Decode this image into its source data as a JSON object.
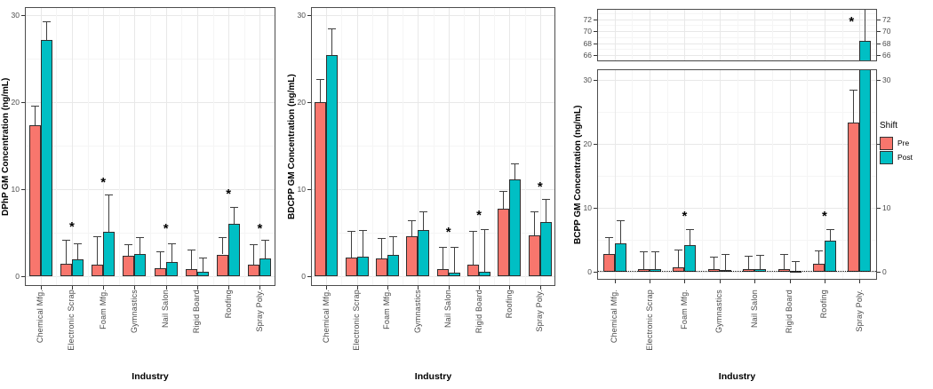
{
  "chart_data": {
    "type": "bar",
    "title": "",
    "xlabel": "Industry",
    "categories": [
      "Chemical Mfg.",
      "Electronic Scrap",
      "Foam Mfg.",
      "Gymnastics",
      "Nail Salon",
      "Rigid Board",
      "Roofing",
      "Spray Poly."
    ],
    "legend": {
      "title": "Shift",
      "position": "right",
      "items": [
        {
          "name": "Pre",
          "color": "#F8766D"
        },
        {
          "name": "Post",
          "color": "#00BFC4"
        }
      ]
    },
    "sig_symbol": "*",
    "grid": true,
    "panels": [
      {
        "ylabel": "DPhP GM Concentration (ng/mL)",
        "ylim": [
          0,
          31
        ],
        "yticks": [
          0,
          10,
          20,
          30
        ],
        "series": [
          {
            "name": "Pre",
            "values": [
              17.3,
              1.4,
              1.3,
              2.3,
              0.9,
              0.8,
              2.5,
              1.3
            ],
            "err_hi": [
              19.6,
              4.2,
              4.6,
              3.7,
              2.9,
              3.1,
              4.5,
              3.7
            ]
          },
          {
            "name": "Post",
            "values": [
              27.1,
              1.9,
              5.1,
              2.6,
              1.6,
              0.5,
              6.0,
              2.0
            ],
            "err_hi": [
              29.3,
              3.8,
              9.4,
              4.5,
              3.8,
              2.1,
              8.0,
              4.2
            ]
          }
        ],
        "sig_markers": [
          {
            "category": "Electronic Scrap",
            "index": 1,
            "y": 5.6
          },
          {
            "category": "Foam Mfg.",
            "index": 2,
            "y": 10.7
          },
          {
            "category": "Nail Salon",
            "index": 4,
            "y": 5.4
          },
          {
            "category": "Roofing",
            "index": 6,
            "y": 9.4
          },
          {
            "category": "Spray Poly.",
            "index": 7,
            "y": 5.4
          }
        ]
      },
      {
        "ylabel": "BDCPP GM Concentration (ng/mL)",
        "ylim": [
          0,
          31
        ],
        "yticks": [
          0,
          10,
          20,
          30
        ],
        "series": [
          {
            "name": "Pre",
            "values": [
              20.0,
              2.1,
              2.0,
              4.6,
              0.8,
              1.3,
              7.8,
              4.7
            ],
            "err_hi": [
              22.7,
              5.2,
              4.4,
              6.4,
              3.4,
              5.2,
              9.8,
              7.4
            ]
          },
          {
            "name": "Post",
            "values": [
              25.4,
              2.2,
              2.4,
              5.3,
              0.45,
              0.5,
              11.1,
              6.2
            ],
            "err_hi": [
              28.5,
              5.3,
              4.6,
              7.4,
              3.4,
              5.4,
              13.0,
              8.9
            ]
          }
        ],
        "sig_markers": [
          {
            "category": "Nail Salon",
            "index": 4,
            "y": 5.0
          },
          {
            "category": "Rigid Board",
            "index": 5,
            "y": 6.9
          },
          {
            "category": "Spray Poly.",
            "index": 7,
            "y": 10.2
          }
        ]
      },
      {
        "ylabel": "BCPP GM Concentration (ng/mL)",
        "ylim": [
          0,
          31.7
        ],
        "yticks": [
          0,
          10,
          20,
          30
        ],
        "right_axis": true,
        "ref_line_y": 0.2,
        "axis_break": {
          "ylim": [
            65,
            73.8
          ],
          "yticks": [
            66,
            68,
            70,
            72
          ]
        },
        "series": [
          {
            "name": "Pre",
            "values": [
              2.8,
              0.4,
              0.7,
              0.4,
              0.35,
              0.35,
              1.2,
              23.4
            ],
            "err_hi": [
              5.4,
              3.2,
              3.5,
              2.4,
              2.5,
              2.8,
              3.3,
              28.5
            ]
          },
          {
            "name": "Post",
            "values": [
              4.5,
              0.4,
              4.2,
              0.3,
              0.35,
              0.2,
              4.9,
              68.4
            ],
            "err_hi": [
              8.1,
              3.2,
              6.7,
              2.8,
              2.6,
              1.7,
              6.7,
              73.7
            ]
          }
        ],
        "sig_markers": [
          {
            "category": "Foam Mfg.",
            "index": 2,
            "y": 8.6
          },
          {
            "category": "Roofing",
            "index": 6,
            "y": 8.6
          },
          {
            "category": "Spray Poly.",
            "index": 7,
            "y": 71.5,
            "panel": "upper"
          }
        ]
      }
    ]
  }
}
